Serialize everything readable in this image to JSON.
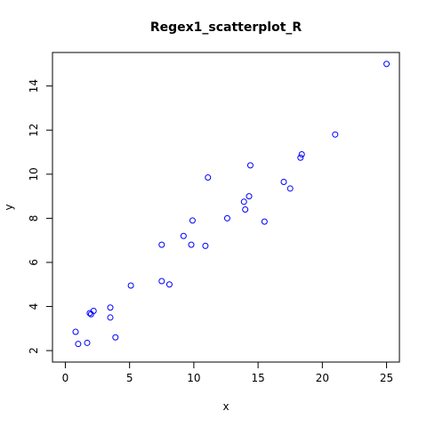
{
  "chart_data": {
    "type": "scatter",
    "title": "Regex1_scatterplot_R",
    "xlabel": "x",
    "ylabel": "y",
    "xlim": [
      0,
      25
    ],
    "ylim": [
      2,
      15
    ],
    "x_ticks": [
      0,
      5,
      10,
      15,
      20,
      25
    ],
    "y_ticks": [
      2,
      4,
      6,
      8,
      10,
      12,
      14
    ],
    "grid": false,
    "legend": "none",
    "point_color": "#0000ff",
    "series": [
      {
        "x": [
          0.8,
          1.0,
          1.7,
          1.9,
          2.0,
          2.2,
          3.5,
          3.5,
          3.9,
          5.1,
          7.5,
          7.5,
          8.1,
          9.2,
          9.8,
          9.9,
          10.9,
          11.1,
          12.6,
          13.9,
          14.0,
          14.3,
          14.4,
          15.5,
          17.0,
          17.5,
          18.3,
          18.4,
          21.0,
          25.0
        ],
        "y": [
          2.85,
          2.3,
          2.35,
          3.7,
          3.65,
          3.8,
          3.95,
          3.5,
          2.6,
          4.95,
          5.15,
          6.8,
          5.0,
          7.2,
          6.8,
          7.9,
          6.75,
          9.85,
          8.0,
          8.75,
          8.4,
          9.0,
          10.4,
          7.85,
          9.65,
          9.35,
          10.75,
          10.9,
          11.8,
          15.0
        ]
      }
    ]
  }
}
